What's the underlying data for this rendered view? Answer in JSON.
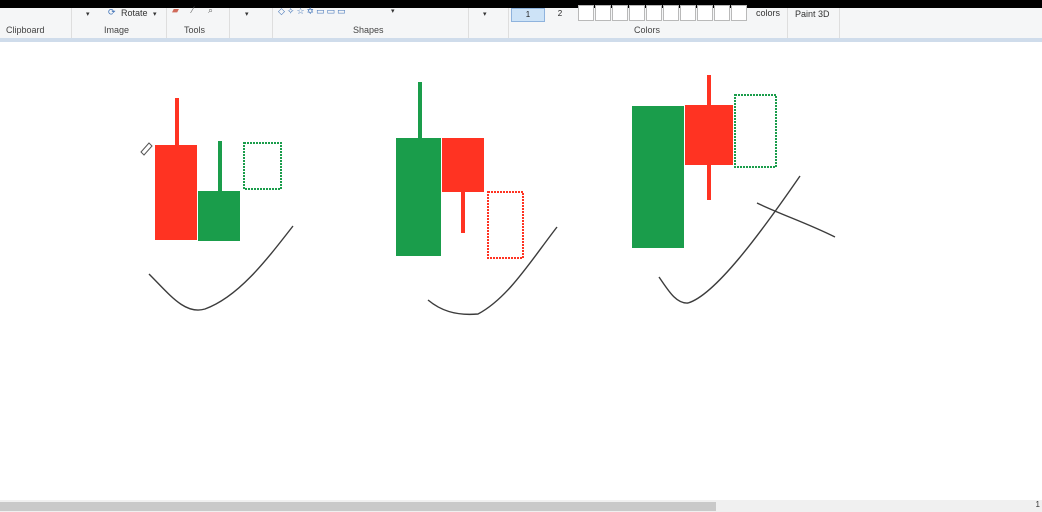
{
  "ribbon": {
    "groups": {
      "clipboard": "Clipboard",
      "image": "Image",
      "tools": "Tools",
      "shapes": "Shapes",
      "colors": "Colors"
    },
    "rotate_label": "Rotate",
    "size_1": "1",
    "size_2": "2",
    "edit_colors_label": "colors",
    "paint3d_label": "Paint 3D",
    "shape_glyphs": "◇✧☆✡▭▭▭",
    "dropdown_glyph": "▾"
  },
  "status": {
    "corner_mark": "1"
  },
  "colors": {
    "green": "#1a9d4b",
    "red": "#ff3322",
    "pencil": "#3c3c3c"
  }
}
